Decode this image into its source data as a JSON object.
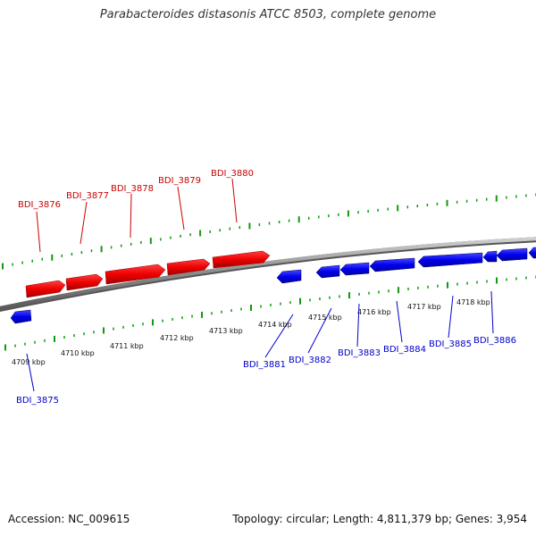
{
  "title": "Parabacteroides distasonis ATCC 8503, complete genome",
  "footer": {
    "accession": "Accession: NC_009615",
    "summary": "Topology: circular; Length: 4,811,379 bp; Genes: 3,954"
  },
  "colors": {
    "forward_gene": "#ee0000",
    "reverse_gene": "#0000ee",
    "backbone": "#8c8c8c",
    "ticks": "#119911"
  },
  "genome_map": {
    "scale_unit": "kbp",
    "ruler_labels": [
      "4709 kbp",
      "4710 kbp",
      "4711 kbp",
      "4712 kbp",
      "4713 kbp",
      "4714 kbp",
      "4715 kbp",
      "4716 kbp",
      "4717 kbp",
      "4718 kbp"
    ],
    "forward_genes": [
      {
        "label": "BDI_3876",
        "strand": "+"
      },
      {
        "label": "BDI_3877",
        "strand": "+"
      },
      {
        "label": "BDI_3878",
        "strand": "+"
      },
      {
        "label": "BDI_3879",
        "strand": "+"
      },
      {
        "label": "BDI_3880",
        "strand": "+"
      }
    ],
    "reverse_genes": [
      {
        "label": "BDI_3875",
        "strand": "-"
      },
      {
        "label": "BDI_3881",
        "strand": "-"
      },
      {
        "label": "BDI_3882",
        "strand": "-"
      },
      {
        "label": "BDI_3883",
        "strand": "-"
      },
      {
        "label": "BDI_3884",
        "strand": "-"
      },
      {
        "label": "BDI_3885",
        "strand": "-"
      },
      {
        "label": "BDI_3886",
        "strand": "-"
      }
    ]
  }
}
